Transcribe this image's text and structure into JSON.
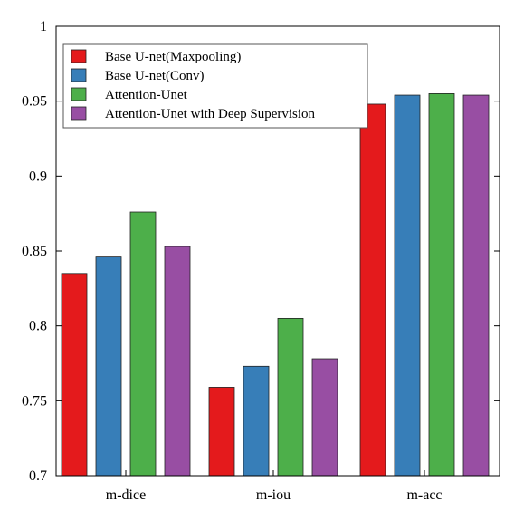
{
  "chart_data": {
    "type": "bar",
    "title": "",
    "xlabel": "",
    "ylabel": "",
    "categories": [
      "m-dice",
      "m-iou",
      "m-acc"
    ],
    "series": [
      {
        "name": "Base U-net(Maxpooling)",
        "color": "#e41a1c",
        "values": [
          0.835,
          0.759,
          0.948
        ]
      },
      {
        "name": "Base U-net(Conv)",
        "color": "#377eb8",
        "values": [
          0.846,
          0.773,
          0.954
        ]
      },
      {
        "name": "Attention-Unet",
        "color": "#4daf4a",
        "values": [
          0.876,
          0.805,
          0.955
        ]
      },
      {
        "name": "Attention-Unet with Deep Supervision",
        "color": "#984ea3",
        "values": [
          0.853,
          0.778,
          0.954
        ]
      }
    ],
    "ylim": [
      0.7,
      1.0
    ],
    "yticks": [
      0.7,
      0.75,
      0.8,
      0.85,
      0.9,
      0.95,
      1.0
    ],
    "ytick_labels": [
      "0.7",
      "0.75",
      "0.8",
      "0.85",
      "0.9",
      "0.95",
      "1"
    ],
    "grid": false,
    "legend_position": "top-left"
  }
}
